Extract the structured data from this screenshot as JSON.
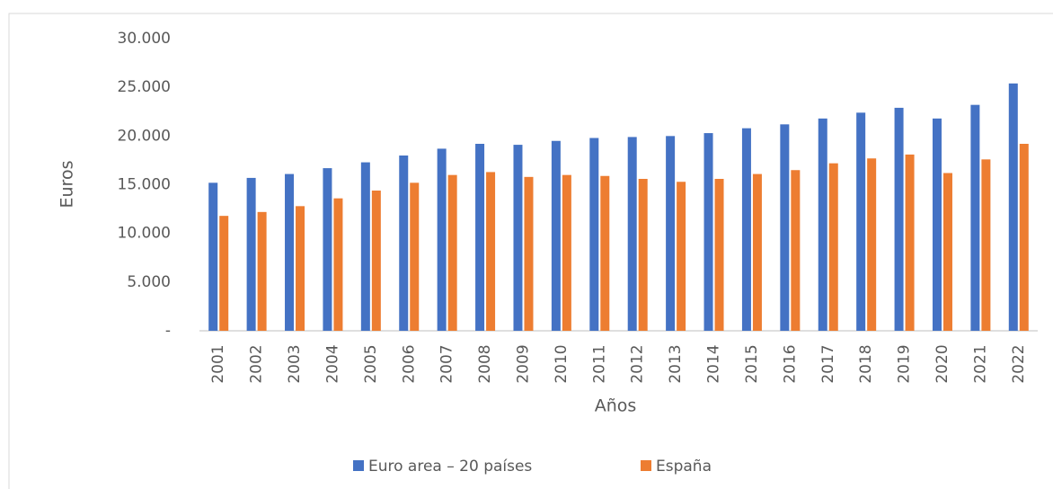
{
  "chart_data": {
    "type": "bar",
    "x_label": "Años",
    "y_label": "Euros",
    "categories": [
      "2001",
      "2002",
      "2003",
      "2004",
      "2005",
      "2006",
      "2007",
      "2008",
      "2009",
      "2010",
      "2011",
      "2012",
      "2013",
      "2014",
      "2015",
      "2016",
      "2017",
      "2018",
      "2019",
      "2020",
      "2021",
      "2022"
    ],
    "series": [
      {
        "name": "Euro area – 20 países",
        "color": "#4472c4",
        "values": [
          15200,
          15700,
          16100,
          16700,
          17300,
          18000,
          18700,
          19200,
          19100,
          19500,
          19800,
          19900,
          20000,
          20300,
          20800,
          21200,
          21800,
          22400,
          22900,
          21800,
          23200,
          25400
        ]
      },
      {
        "name": "España",
        "color": "#ed7d31",
        "values": [
          11800,
          12200,
          12800,
          13600,
          14400,
          15200,
          16000,
          16300,
          15800,
          16000,
          15900,
          15600,
          15300,
          15600,
          16100,
          16500,
          17200,
          17700,
          18100,
          16200,
          17600,
          19200
        ]
      }
    ],
    "ylim": [
      0,
      30000
    ],
    "yticks": [
      {
        "value": 0,
        "label": "-"
      },
      {
        "value": 5000,
        "label": "5.000"
      },
      {
        "value": 10000,
        "label": "10.000"
      },
      {
        "value": 15000,
        "label": "15.000"
      },
      {
        "value": 20000,
        "label": "20.000"
      },
      {
        "value": 25000,
        "label": "25.000"
      },
      {
        "value": 30000,
        "label": "30.000"
      }
    ],
    "grid": false,
    "legend": "bottom"
  }
}
